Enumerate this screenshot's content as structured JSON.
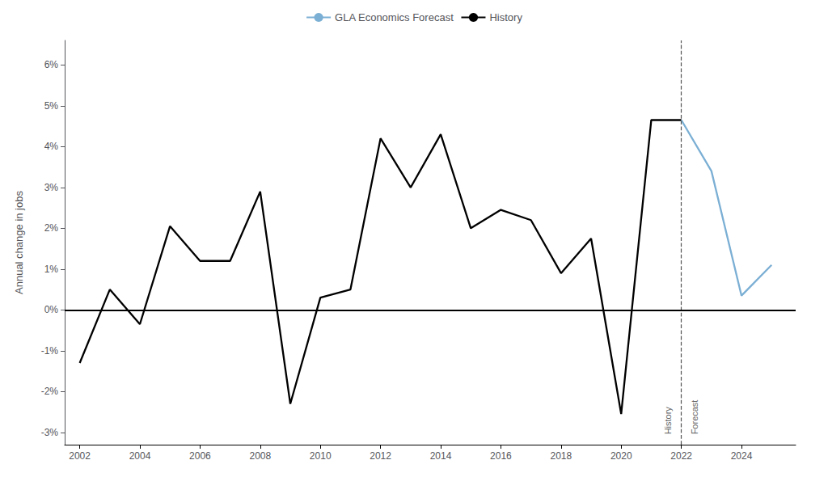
{
  "chart_data": {
    "type": "line",
    "ylabel": "Annual change in jobs",
    "series": [
      {
        "name": "History",
        "color": "#000000",
        "x": [
          2002,
          2003,
          2004,
          2005,
          2006,
          2007,
          2008,
          2009,
          2010,
          2011,
          2012,
          2013,
          2014,
          2015,
          2016,
          2017,
          2018,
          2019,
          2020,
          2021,
          2022
        ],
        "values": [
          -1.3,
          0.5,
          -0.35,
          2.05,
          1.2,
          1.2,
          2.9,
          -2.3,
          0.3,
          0.5,
          4.2,
          3.0,
          4.3,
          2.0,
          2.45,
          2.2,
          0.9,
          1.75,
          -2.55,
          4.65,
          4.65
        ]
      },
      {
        "name": "GLA Economics Forecast",
        "color": "#7BAFD4",
        "x": [
          2022,
          2023,
          2024,
          2025
        ],
        "values": [
          4.65,
          3.4,
          0.35,
          1.1
        ]
      }
    ],
    "xlim": [
      2001.5,
      2025.8
    ],
    "xticks": [
      2002,
      2004,
      2006,
      2008,
      2010,
      2012,
      2014,
      2016,
      2018,
      2020,
      2022,
      2024
    ],
    "ylim": [
      -3.3,
      6.6
    ],
    "yticks": [
      {
        "value": -3,
        "label": "-3%"
      },
      {
        "value": -2,
        "label": "-2%"
      },
      {
        "value": -1,
        "label": "-1%"
      },
      {
        "value": 0,
        "label": "0%"
      },
      {
        "value": 1,
        "label": "1%"
      },
      {
        "value": 2,
        "label": "2%"
      },
      {
        "value": 3,
        "label": "3%"
      },
      {
        "value": 4,
        "label": "4%"
      },
      {
        "value": 5,
        "label": "5%"
      },
      {
        "value": 6,
        "label": "6%"
      }
    ],
    "reference_lines": [
      {
        "axis": "x",
        "value": 2022,
        "color": "#555555",
        "line_style": "dashed"
      },
      {
        "axis": "y",
        "value": 0,
        "color": "#000000",
        "line_style": "solid"
      }
    ],
    "annotations": [
      {
        "text": "History",
        "x": 2021.55,
        "y": -3.05
      },
      {
        "text": "Forecast",
        "x": 2022.45,
        "y": -3.05
      }
    ],
    "grid": false,
    "legend": "top"
  }
}
